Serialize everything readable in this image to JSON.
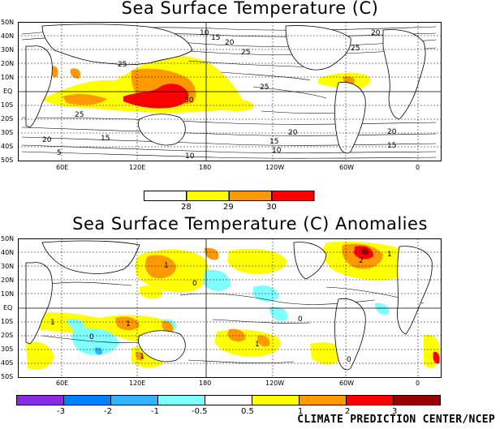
{
  "top_map": {
    "title": "Sea Surface Temperature (C)",
    "lat_labels": [
      "50N",
      "40N",
      "30N",
      "20N",
      "10N",
      "EQ",
      "10S",
      "20S",
      "30S",
      "40S",
      "50S"
    ],
    "lon_labels": [
      "60E",
      "120E",
      "180",
      "120W",
      "60W",
      "0"
    ],
    "contour_labels": [
      "10",
      "15",
      "20",
      "25",
      "30",
      "25",
      "20",
      "15",
      "10",
      "5",
      "25",
      "20",
      "15",
      "20",
      "25",
      "15",
      "10",
      "20",
      "25"
    ],
    "colorbar": {
      "labels": [
        "28",
        "29",
        "30"
      ],
      "colors": [
        "#ffffff",
        "#ffff00",
        "#ff9900",
        "#ff0000"
      ]
    }
  },
  "bottom_map": {
    "title": "Sea Surface Temperature (C) Anomalies",
    "lat_labels": [
      "50N",
      "40N",
      "30N",
      "20N",
      "10N",
      "EQ",
      "10S",
      "20S",
      "30S",
      "40S",
      "50S"
    ],
    "lon_labels": [
      "60E",
      "120E",
      "180",
      "120W",
      "60W",
      "0"
    ],
    "contour_labels": [
      "1",
      "2",
      "1",
      "0",
      "1",
      "0",
      "0",
      "1",
      "1",
      "0",
      "1"
    ],
    "colorbar": {
      "labels": [
        "-3",
        "-2",
        "-1",
        "-0.5",
        "0.5",
        "1",
        "2",
        "3"
      ],
      "colors": [
        "#8a2be2",
        "#0080ff",
        "#33b3ff",
        "#80ffff",
        "#ffffff",
        "#ffff00",
        "#ff9900",
        "#ff0000",
        "#990000"
      ]
    }
  },
  "credit": "CLIMATE PREDICTION CENTER/NCEP"
}
